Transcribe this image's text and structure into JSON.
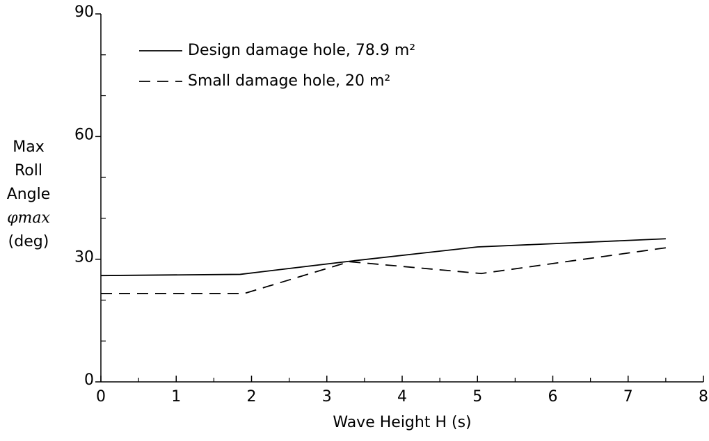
{
  "chart_data": {
    "type": "line",
    "xlabel": "Wave Height H (s)",
    "ylabel": [
      "Max",
      "Roll",
      "Angle",
      "φmax",
      "(deg)"
    ],
    "xlim": [
      0,
      8
    ],
    "xticks": [
      0,
      1,
      2,
      3,
      4,
      5,
      6,
      7,
      8
    ],
    "xminorticks": [
      0.5,
      1.5,
      2.5,
      3.5,
      4.5,
      5.5,
      6.5,
      7.5
    ],
    "ylim": [
      0,
      90
    ],
    "yticks": [
      0,
      30,
      60,
      90
    ],
    "yminorticks": [
      10,
      20,
      40,
      50,
      70,
      80
    ],
    "grid": false,
    "series": [
      {
        "name": "Design damage hole, 78.9 m²",
        "color": "#000000",
        "dash": "solid",
        "x": [
          0,
          1.85,
          3.3,
          5,
          7.5
        ],
        "values": [
          26,
          26.3,
          29.5,
          33,
          35
        ]
      },
      {
        "name": "Small damage hole, 20 m²",
        "color": "#000000",
        "dash": "dashed",
        "x": [
          0,
          1.9,
          3.3,
          5.05,
          7.5
        ],
        "values": [
          21.6,
          21.6,
          29.4,
          26.5,
          32.8
        ]
      }
    ]
  }
}
